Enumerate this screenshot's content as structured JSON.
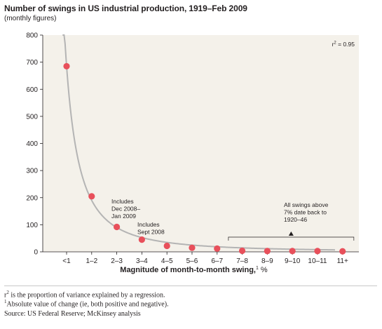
{
  "header": {
    "title": "Number of swings in US industrial production, 1919–Feb 2009",
    "subtitle": "(monthly figures)"
  },
  "chart_data": {
    "type": "scatter",
    "title": "Number of swings in US industrial production, 1919–Feb 2009",
    "subtitle": "(monthly figures)",
    "xlabel": "Magnitude of month-to-month swing,",
    "xlabel_sup": "1",
    "xlabel_unit": "%",
    "categories": [
      "<1",
      "1–2",
      "2–3",
      "3–4",
      "4–5",
      "5–6",
      "6–7",
      "7–8",
      "8–9",
      "9–10",
      "10–11",
      "11+"
    ],
    "values": [
      685,
      205,
      92,
      45,
      22,
      15,
      12,
      4,
      3,
      3,
      3,
      2
    ],
    "ylim": [
      0,
      800
    ],
    "yticks": [
      0,
      100,
      200,
      300,
      400,
      500,
      600,
      700,
      800
    ],
    "grid": false,
    "trendline": "power fit, r² = 0.95",
    "r2_label_prefix": "r",
    "r2_label_sup": "2",
    "r2_label_value": "= 0.95",
    "point_color": "#e8505b",
    "curve_color": "#b4b4b4",
    "plot_background": "#f4f1ea",
    "annotations": {
      "dec2008": [
        "Includes",
        "Dec 2008–",
        "Jan 2009"
      ],
      "sept2008": [
        "Includes",
        "Sept 2008"
      ],
      "above7": [
        "All swings above",
        "7% date back to",
        "1920–46"
      ]
    }
  },
  "footnotes": {
    "r2_prefix": "r",
    "r2_sup": "2",
    "r2_text": " is the proportion of variance explained by a regression.",
    "abs_sup": "1",
    "abs_text": "Absolute value of change (ie, both positive and negative).",
    "source": "Source: US Federal Reserve; McKinsey analysis"
  }
}
